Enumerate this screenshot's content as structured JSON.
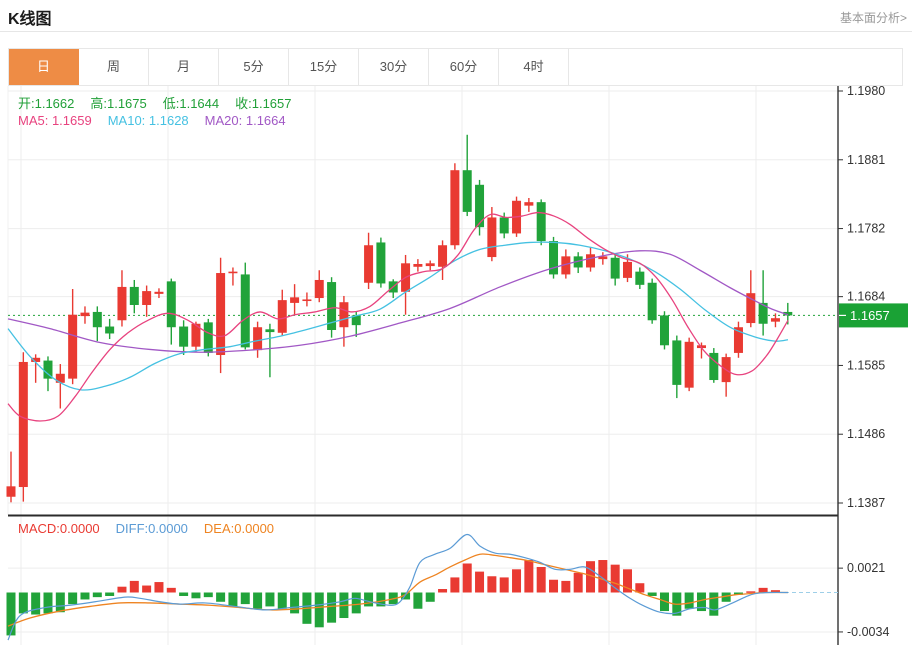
{
  "header": {
    "title": "K线图",
    "link": "基本面分析>"
  },
  "tabs": {
    "items": [
      {
        "label": "日",
        "name": "tab-day",
        "active": true
      },
      {
        "label": "周",
        "name": "tab-week",
        "active": false
      },
      {
        "label": "月",
        "name": "tab-month",
        "active": false
      },
      {
        "label": "5分",
        "name": "tab-5min",
        "active": false
      },
      {
        "label": "15分",
        "name": "tab-15min",
        "active": false
      },
      {
        "label": "30分",
        "name": "tab-30min",
        "active": false
      },
      {
        "label": "60分",
        "name": "tab-60min",
        "active": false
      },
      {
        "label": "4时",
        "name": "tab-4hour",
        "active": false
      }
    ]
  },
  "ohlc_legend": {
    "color": "#21a038",
    "items": [
      {
        "name": "open-value",
        "text": "开:1.1662"
      },
      {
        "name": "high-value",
        "text": "高:1.1675"
      },
      {
        "name": "low-value",
        "text": "低:1.1644"
      },
      {
        "name": "close-value",
        "text": "收:1.1657"
      }
    ]
  },
  "ma_legend": {
    "items": [
      {
        "name": "ma5-value",
        "text": "MA5: 1.1659",
        "color": "#e8437f"
      },
      {
        "name": "ma10-value",
        "text": "MA10: 1.1628",
        "color": "#45c1e2"
      },
      {
        "name": "ma20-value",
        "text": "MA20: 1.1664",
        "color": "#a158c5"
      }
    ]
  },
  "macd_legend": {
    "items": [
      {
        "name": "macd-value",
        "text": "MACD:0.0000",
        "color": "#e93a32"
      },
      {
        "name": "diff-value",
        "text": "DIFF:0.0000",
        "color": "#5b9bd5"
      },
      {
        "name": "dea-value",
        "text": "DEA:0.0000",
        "color": "#ee8422"
      }
    ]
  },
  "colors": {
    "up": "#e93a32",
    "down": "#21a33a",
    "badge": "#1aa235",
    "ma5": "#e8437f",
    "ma10": "#45c1e2",
    "ma20": "#a158c5",
    "diff": "#5b9bd5",
    "dea": "#ee8422",
    "grid": "#ededed",
    "axis": "#333333",
    "label": "#333333",
    "price_line": "#21a33a",
    "zero_dash": "#9ecfe8",
    "tab_active": "#ee8c45"
  },
  "chart_data": [
    {
      "type": "candlestick",
      "title": "K线图 日线",
      "legend_ohlc": {
        "open": 1.1662,
        "high": 1.1675,
        "low": 1.1644,
        "close": 1.1657
      },
      "legend_ma": {
        "MA5": 1.1659,
        "MA10": 1.1628,
        "MA20": 1.1664
      },
      "current_price": {
        "label": "1.1657",
        "value": 1.1657
      },
      "y_axis": [
        {
          "label": "1.1980",
          "value": 1.198
        },
        {
          "label": "1.1881",
          "value": 1.1881
        },
        {
          "label": "1.1782",
          "value": 1.1782
        },
        {
          "label": "1.1684",
          "value": 1.1684
        },
        {
          "label": "1.1585",
          "value": 1.1585
        },
        {
          "label": "1.1486",
          "value": 1.1486
        },
        {
          "label": "1.1387",
          "value": 1.1387
        }
      ],
      "ylim": [
        1.1387,
        1.198
      ],
      "grid": true,
      "candles_ohlc": [
        [
          1.1396,
          1.1461,
          1.1388,
          1.1411
        ],
        [
          1.141,
          1.1604,
          1.1389,
          1.159
        ],
        [
          1.159,
          1.1601,
          1.156,
          1.1596
        ],
        [
          1.1592,
          1.1598,
          1.1548,
          1.1566
        ],
        [
          1.156,
          1.1587,
          1.1523,
          1.1573
        ],
        [
          1.1566,
          1.1695,
          1.1558,
          1.1658
        ],
        [
          1.1656,
          1.167,
          1.1645,
          1.1661
        ],
        [
          1.1662,
          1.167,
          1.162,
          1.164
        ],
        [
          1.1641,
          1.1652,
          1.1623,
          1.1631
        ],
        [
          1.165,
          1.1722,
          1.1641,
          1.1698
        ],
        [
          1.1698,
          1.1708,
          1.166,
          1.1672
        ],
        [
          1.1672,
          1.17,
          1.1655,
          1.1692
        ],
        [
          1.1688,
          1.1696,
          1.1682,
          1.1691
        ],
        [
          1.1706,
          1.171,
          1.1615,
          1.164
        ],
        [
          1.1641,
          1.165,
          1.16,
          1.1612
        ],
        [
          1.1612,
          1.1648,
          1.1605,
          1.1645
        ],
        [
          1.1647,
          1.1652,
          1.1598,
          1.1603
        ],
        [
          1.16,
          1.174,
          1.1574,
          1.1718
        ],
        [
          1.1718,
          1.1726,
          1.17,
          1.172
        ],
        [
          1.1716,
          1.1733,
          1.1608,
          1.1611
        ],
        [
          1.1607,
          1.1648,
          1.1596,
          1.164
        ],
        [
          1.1637,
          1.1645,
          1.1568,
          1.1633
        ],
        [
          1.1632,
          1.1694,
          1.1628,
          1.1679
        ],
        [
          1.1675,
          1.1702,
          1.1658,
          1.1683
        ],
        [
          1.1678,
          1.169,
          1.167,
          1.168
        ],
        [
          1.1682,
          1.1722,
          1.1676,
          1.1708
        ],
        [
          1.1705,
          1.1712,
          1.1625,
          1.1636
        ],
        [
          1.164,
          1.1685,
          1.1612,
          1.1676
        ],
        [
          1.1657,
          1.1662,
          1.1626,
          1.1643
        ],
        [
          1.1704,
          1.1776,
          1.1695,
          1.1758
        ],
        [
          1.1762,
          1.1769,
          1.1697,
          1.1703
        ],
        [
          1.1706,
          1.1709,
          1.1682,
          1.169
        ],
        [
          1.1691,
          1.1744,
          1.1658,
          1.1732
        ],
        [
          1.1727,
          1.1738,
          1.172,
          1.1731
        ],
        [
          1.1728,
          1.1736,
          1.1722,
          1.1732
        ],
        [
          1.1727,
          1.1765,
          1.1708,
          1.1758
        ],
        [
          1.1758,
          1.1876,
          1.1752,
          1.1866
        ],
        [
          1.1866,
          1.1917,
          1.18,
          1.1806
        ],
        [
          1.1845,
          1.1852,
          1.1772,
          1.1784
        ],
        [
          1.1741,
          1.1813,
          1.1735,
          1.1798
        ],
        [
          1.1798,
          1.1805,
          1.1768,
          1.1775
        ],
        [
          1.1775,
          1.1828,
          1.177,
          1.1822
        ],
        [
          1.1815,
          1.1826,
          1.1806,
          1.182
        ],
        [
          1.182,
          1.1824,
          1.1758,
          1.1764
        ],
        [
          1.1764,
          1.177,
          1.171,
          1.1716
        ],
        [
          1.1716,
          1.1752,
          1.171,
          1.1742
        ],
        [
          1.1742,
          1.1748,
          1.1718,
          1.1726
        ],
        [
          1.1726,
          1.1755,
          1.172,
          1.1745
        ],
        [
          1.1738,
          1.1748,
          1.173,
          1.1742
        ],
        [
          1.174,
          1.1745,
          1.17,
          1.171
        ],
        [
          1.1711,
          1.1745,
          1.1705,
          1.1734
        ],
        [
          1.172,
          1.1726,
          1.1695,
          1.1701
        ],
        [
          1.1704,
          1.171,
          1.1645,
          1.165
        ],
        [
          1.1657,
          1.1663,
          1.1608,
          1.1614
        ],
        [
          1.1621,
          1.1628,
          1.1538,
          1.1557
        ],
        [
          1.1553,
          1.1625,
          1.1548,
          1.1619
        ],
        [
          1.161,
          1.1618,
          1.1595,
          1.1614
        ],
        [
          1.1603,
          1.161,
          1.156,
          1.1564
        ],
        [
          1.1561,
          1.1602,
          1.154,
          1.1597
        ],
        [
          1.1603,
          1.1648,
          1.1596,
          1.164
        ],
        [
          1.1646,
          1.1722,
          1.164,
          1.1689
        ],
        [
          1.1675,
          1.1722,
          1.1628,
          1.1645
        ],
        [
          1.1648,
          1.166,
          1.164,
          1.1653
        ],
        [
          1.1662,
          1.1675,
          1.1644,
          1.1657
        ]
      ],
      "ma5_line": [
        [
          8,
          1.153
        ],
        [
          20,
          1.1512
        ],
        [
          40,
          1.1505
        ],
        [
          58,
          1.1512
        ],
        [
          75,
          1.154
        ],
        [
          92,
          1.1575
        ],
        [
          110,
          1.1608
        ],
        [
          128,
          1.1632
        ],
        [
          148,
          1.165
        ],
        [
          168,
          1.166
        ],
        [
          188,
          1.165
        ],
        [
          208,
          1.1632
        ],
        [
          225,
          1.1628
        ],
        [
          243,
          1.165
        ],
        [
          260,
          1.1662
        ],
        [
          278,
          1.1652
        ],
        [
          295,
          1.1658
        ],
        [
          315,
          1.1662
        ],
        [
          335,
          1.1668
        ],
        [
          352,
          1.1662
        ],
        [
          370,
          1.167
        ],
        [
          388,
          1.1692
        ],
        [
          406,
          1.1712
        ],
        [
          424,
          1.172
        ],
        [
          442,
          1.1724
        ],
        [
          458,
          1.1744
        ],
        [
          474,
          1.178
        ],
        [
          490,
          1.1802
        ],
        [
          506,
          1.1798
        ],
        [
          522,
          1.18
        ],
        [
          538,
          1.1805
        ],
        [
          554,
          1.18
        ],
        [
          570,
          1.1788
        ],
        [
          588,
          1.1768
        ],
        [
          605,
          1.1752
        ],
        [
          622,
          1.174
        ],
        [
          640,
          1.1732
        ],
        [
          656,
          1.1712
        ],
        [
          672,
          1.168
        ],
        [
          688,
          1.164
        ],
        [
          704,
          1.1606
        ],
        [
          720,
          1.1585
        ],
        [
          736,
          1.1572
        ],
        [
          752,
          1.1577
        ],
        [
          766,
          1.1598
        ],
        [
          776,
          1.162
        ],
        [
          788,
          1.165
        ]
      ],
      "ma10_line": [
        [
          8,
          1.1638
        ],
        [
          30,
          1.1598
        ],
        [
          55,
          1.1565
        ],
        [
          80,
          1.155
        ],
        [
          105,
          1.1555
        ],
        [
          130,
          1.1568
        ],
        [
          155,
          1.1588
        ],
        [
          180,
          1.1602
        ],
        [
          205,
          1.1608
        ],
        [
          230,
          1.1612
        ],
        [
          255,
          1.162
        ],
        [
          280,
          1.1627
        ],
        [
          305,
          1.1636
        ],
        [
          330,
          1.1646
        ],
        [
          355,
          1.1656
        ],
        [
          380,
          1.1666
        ],
        [
          405,
          1.169
        ],
        [
          430,
          1.1712
        ],
        [
          455,
          1.1736
        ],
        [
          480,
          1.1752
        ],
        [
          505,
          1.1758
        ],
        [
          530,
          1.1762
        ],
        [
          555,
          1.1762
        ],
        [
          580,
          1.1758
        ],
        [
          605,
          1.175
        ],
        [
          630,
          1.1738
        ],
        [
          655,
          1.172
        ],
        [
          680,
          1.1695
        ],
        [
          705,
          1.1665
        ],
        [
          730,
          1.164
        ],
        [
          755,
          1.1626
        ],
        [
          775,
          1.162
        ],
        [
          788,
          1.1622
        ]
      ],
      "ma20_line": [
        [
          8,
          1.1652
        ],
        [
          50,
          1.1638
        ],
        [
          100,
          1.1618
        ],
        [
          150,
          1.1608
        ],
        [
          200,
          1.1604
        ],
        [
          250,
          1.1607
        ],
        [
          300,
          1.1614
        ],
        [
          350,
          1.1627
        ],
        [
          400,
          1.1646
        ],
        [
          450,
          1.1667
        ],
        [
          500,
          1.1698
        ],
        [
          550,
          1.1724
        ],
        [
          600,
          1.1742
        ],
        [
          640,
          1.175
        ],
        [
          670,
          1.1745
        ],
        [
          700,
          1.1722
        ],
        [
          730,
          1.1697
        ],
        [
          755,
          1.1678
        ],
        [
          772,
          1.1666
        ],
        [
          788,
          1.1658
        ]
      ]
    },
    {
      "type": "bar",
      "title": "MACD",
      "legend_values": {
        "MACD": 0.0,
        "DIFF": 0.0,
        "DEA": 0.0
      },
      "y_axis": [
        {
          "label": "0.0021",
          "value": 0.0021
        },
        {
          "label": "-0.0034",
          "value": -0.0034
        }
      ],
      "histogram_x1e4": [
        -37,
        -18,
        -19,
        -18,
        -17,
        -10,
        -6,
        -4,
        -3,
        5,
        10,
        6,
        9,
        4,
        -3,
        -5,
        -4,
        -8,
        -12,
        -10,
        -14,
        -12,
        -14,
        -18,
        -27,
        -30,
        -26,
        -22,
        -18,
        -12,
        -12,
        -10,
        -6,
        -14,
        -8,
        3,
        13,
        25,
        18,
        14,
        13,
        20,
        28,
        22,
        11,
        10,
        17,
        27,
        28,
        24,
        20,
        8,
        -3,
        -16,
        -20,
        -14,
        -16,
        -20,
        -8,
        -2,
        1,
        4,
        2,
        0
      ],
      "diff_line_x1e4": [
        [
          8,
          -41
        ],
        [
          20,
          -20
        ],
        [
          45,
          -13
        ],
        [
          70,
          -11
        ],
        [
          95,
          -8
        ],
        [
          125,
          -4
        ],
        [
          140,
          -5
        ],
        [
          160,
          -8
        ],
        [
          180,
          -10
        ],
        [
          205,
          -9
        ],
        [
          235,
          -12
        ],
        [
          265,
          -15
        ],
        [
          290,
          -13
        ],
        [
          315,
          -11
        ],
        [
          340,
          -8
        ],
        [
          355,
          -5
        ],
        [
          370,
          -8
        ],
        [
          390,
          -11
        ],
        [
          400,
          -8
        ],
        [
          410,
          5
        ],
        [
          420,
          26
        ],
        [
          435,
          33
        ],
        [
          450,
          38
        ],
        [
          467,
          50
        ],
        [
          480,
          40
        ],
        [
          495,
          34
        ],
        [
          510,
          33
        ],
        [
          525,
          30
        ],
        [
          540,
          26
        ],
        [
          555,
          20
        ],
        [
          570,
          20
        ],
        [
          585,
          22
        ],
        [
          600,
          14
        ],
        [
          615,
          4
        ],
        [
          630,
          -5
        ],
        [
          645,
          -12
        ],
        [
          660,
          -17
        ],
        [
          675,
          -18
        ],
        [
          690,
          -14
        ],
        [
          705,
          -13
        ],
        [
          715,
          -15
        ],
        [
          730,
          -10
        ],
        [
          745,
          -4
        ],
        [
          755,
          -1
        ],
        [
          770,
          0
        ],
        [
          788,
          0
        ]
      ],
      "dea_line_x1e4": [
        [
          8,
          -29
        ],
        [
          30,
          -22
        ],
        [
          60,
          -16
        ],
        [
          90,
          -12
        ],
        [
          120,
          -9
        ],
        [
          150,
          -9
        ],
        [
          180,
          -10
        ],
        [
          210,
          -11
        ],
        [
          240,
          -13
        ],
        [
          270,
          -15
        ],
        [
          300,
          -14
        ],
        [
          330,
          -12
        ],
        [
          360,
          -10
        ],
        [
          390,
          -6
        ],
        [
          405,
          -2
        ],
        [
          420,
          9
        ],
        [
          435,
          15
        ],
        [
          450,
          22
        ],
        [
          465,
          28
        ],
        [
          480,
          33
        ],
        [
          495,
          32
        ],
        [
          510,
          30
        ],
        [
          525,
          28
        ],
        [
          540,
          25
        ],
        [
          555,
          22
        ],
        [
          570,
          19
        ],
        [
          585,
          16
        ],
        [
          600,
          12
        ],
        [
          615,
          8
        ],
        [
          630,
          3
        ],
        [
          645,
          -2
        ],
        [
          660,
          -6
        ],
        [
          675,
          -10
        ],
        [
          690,
          -9
        ],
        [
          705,
          -6
        ],
        [
          720,
          -4
        ],
        [
          735,
          -2
        ],
        [
          750,
          -1
        ],
        [
          765,
          0
        ],
        [
          788,
          0
        ]
      ]
    }
  ]
}
